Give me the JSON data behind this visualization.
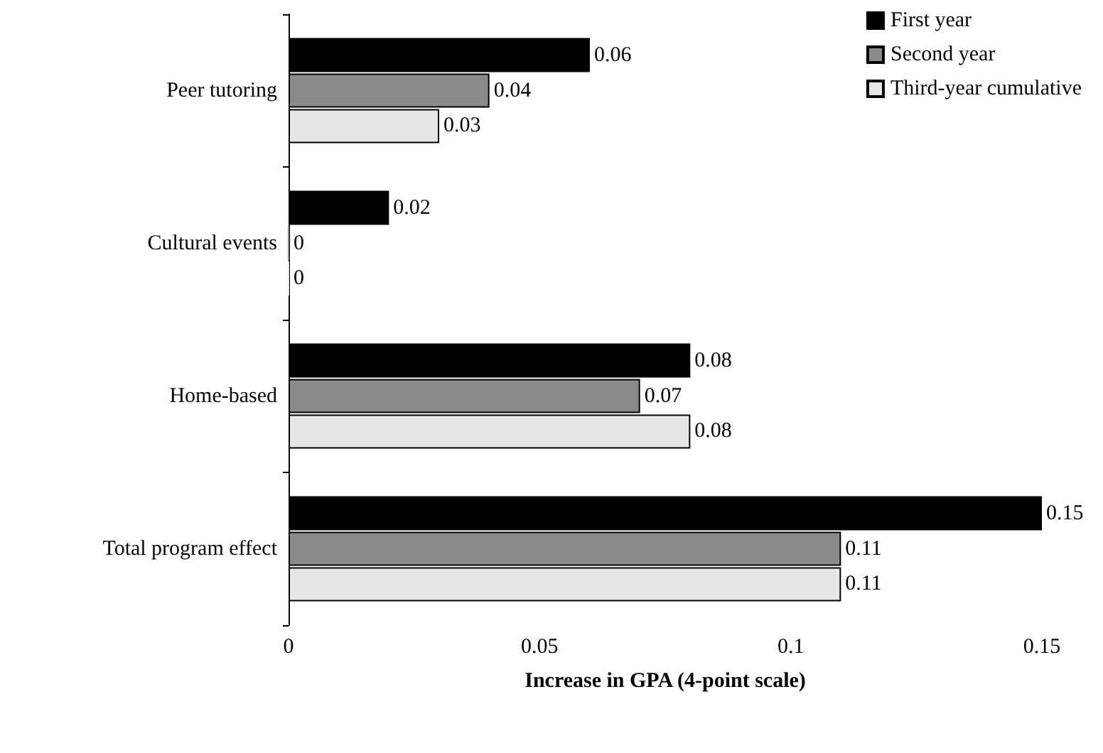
{
  "chart_data": {
    "type": "bar",
    "orientation": "horizontal",
    "xlabel": "Increase in GPA (4-point scale)",
    "categories": [
      "Peer tutoring",
      "Cultural events",
      "Home-based",
      "Total program effect"
    ],
    "series": [
      {
        "name": "First year",
        "color": "#000000",
        "values": [
          0.06,
          0.02,
          0.08,
          0.15
        ]
      },
      {
        "name": "Second year",
        "color": "#8a8a8a",
        "values": [
          0.04,
          0,
          0.07,
          0.11
        ]
      },
      {
        "name": "Third-year cumulative",
        "color": "#e6e6e6",
        "values": [
          0.03,
          0,
          0.08,
          0.11
        ]
      }
    ],
    "xlim": [
      0,
      0.15
    ],
    "xticks": [
      0,
      0.05,
      0.1,
      0.15
    ],
    "data_labels": true,
    "grid": false,
    "legend": "top right"
  }
}
